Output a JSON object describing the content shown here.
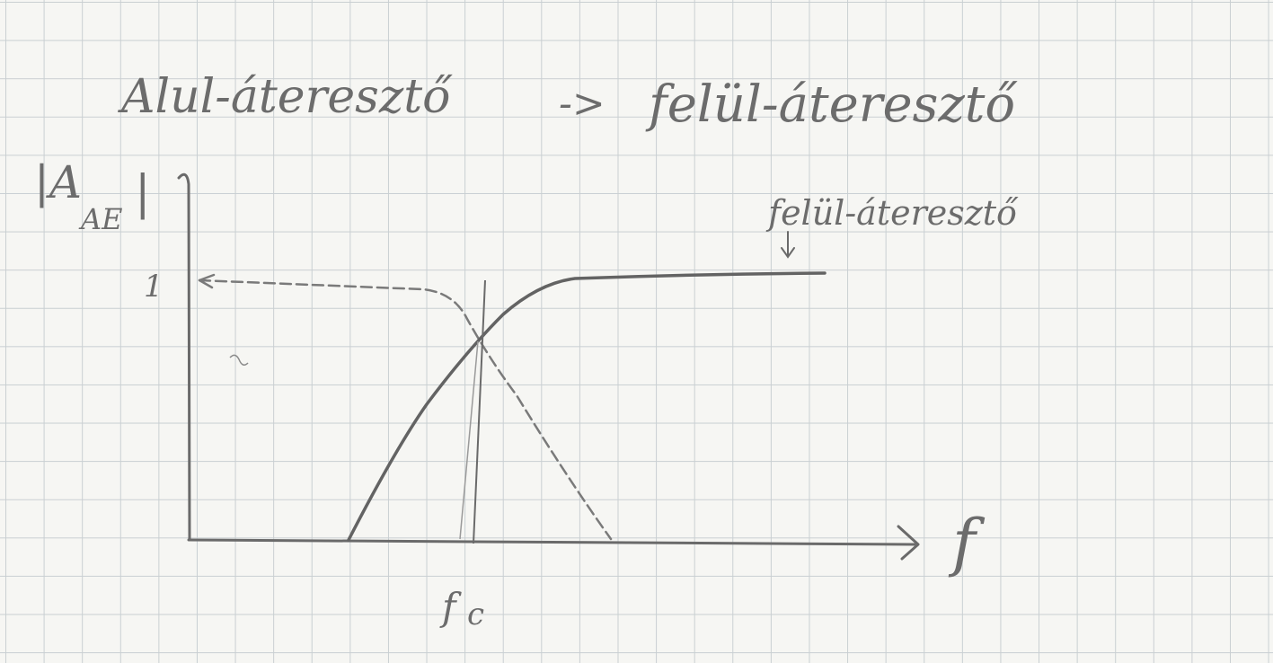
{
  "title": {
    "left": "Alul-áteresztő",
    "arrow": "->",
    "right": "felül-áteresztő"
  },
  "axes": {
    "y_label_main": "|A",
    "y_label_sub": "AE",
    "y_label_close": "|",
    "x_label": "f",
    "y_tick": "1",
    "cutoff_label_main": "f",
    "cutoff_label_sub": "c"
  },
  "annotation": {
    "curve_label": "felül-áteresztő"
  },
  "chart_data": {
    "type": "line",
    "xlabel": "f",
    "ylabel": "|A_AE|",
    "ylim": [
      0,
      1
    ],
    "cutoff": "f_c",
    "series": [
      {
        "name": "felül-áteresztő",
        "style": "solid",
        "x": [
          0.3,
          0.42,
          0.55,
          0.62,
          0.75,
          1.0
        ],
        "y": [
          0.0,
          0.4,
          0.8,
          0.97,
          1.0,
          1.02
        ]
      },
      {
        "style": "dashed",
        "x": [
          0.0,
          0.5,
          0.57,
          0.64,
          0.8,
          0.85
        ],
        "y": [
          1.0,
          0.98,
          0.8,
          0.55,
          0.1,
          0.0
        ]
      }
    ]
  },
  "colors": {
    "pencil": "#6a6a6a",
    "grid": "#c9cfd2",
    "paper": "#f6f6f3"
  }
}
